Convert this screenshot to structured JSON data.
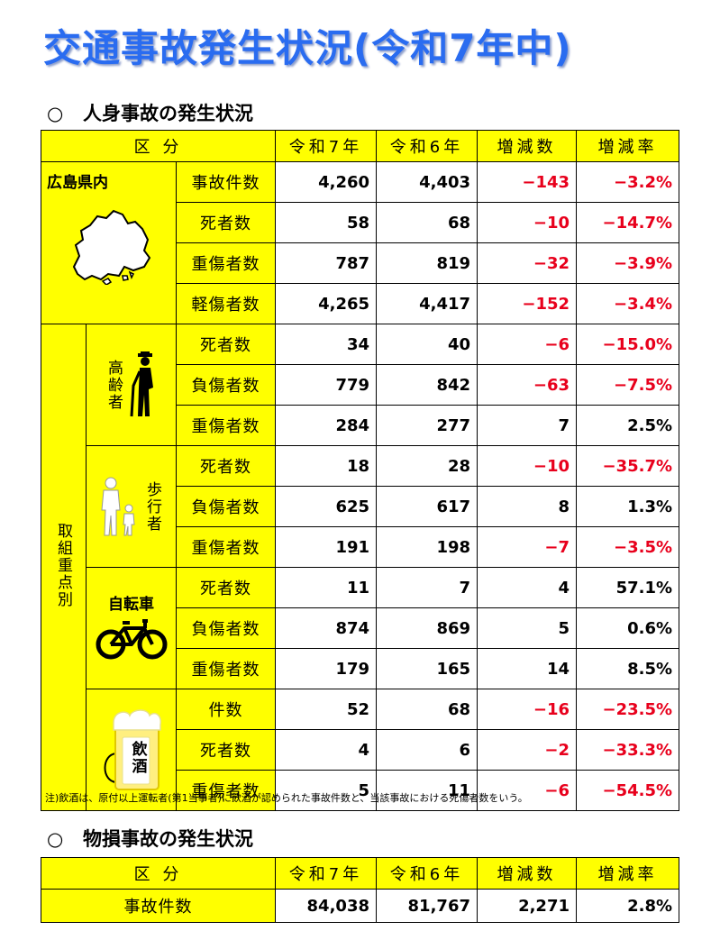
{
  "title": "交通事故発生状況(令和7年中)",
  "section1": {
    "mark": "○",
    "title": "人身事故の発生状況"
  },
  "section2": {
    "mark": "○",
    "title": "物損事故の発生状況"
  },
  "header": [
    "区 分",
    "令和7年",
    "令和6年",
    "増減数",
    "増減率"
  ],
  "icons": [
    "hiroshima-map-icon",
    "elderly-person-icon",
    "pedestrian-icon",
    "bicycle-icon",
    "beer-mug-icon"
  ],
  "colors": {
    "title": "#2a6cf0",
    "highlight": "#ffff00",
    "negative": "#e8001c"
  },
  "injury": {
    "pref": {
      "label": "広島県内",
      "rows": [
        {
          "label": "事故件数",
          "r7": "4,260",
          "r6": "4,403",
          "diff": "−143",
          "rate": "−3.2%"
        },
        {
          "label": "死者数",
          "r7": "58",
          "r6": "68",
          "diff": "−10",
          "rate": "−14.7%"
        },
        {
          "label": "重傷者数",
          "r7": "787",
          "r6": "819",
          "diff": "−32",
          "rate": "−3.9%"
        },
        {
          "label": "軽傷者数",
          "r7": "4,265",
          "r6": "4,417",
          "diff": "−152",
          "rate": "−3.4%"
        }
      ]
    },
    "focus_label": "取組重点別",
    "groups": [
      {
        "label": "高齢者",
        "rows": [
          {
            "label": "死者数",
            "r7": "34",
            "r6": "40",
            "diff": "−6",
            "rate": "−15.0%"
          },
          {
            "label": "負傷者数",
            "r7": "779",
            "r6": "842",
            "diff": "−63",
            "rate": "−7.5%"
          },
          {
            "label": "重傷者数",
            "r7": "284",
            "r6": "277",
            "diff": "7",
            "rate": "2.5%"
          }
        ]
      },
      {
        "label": "歩行者",
        "rows": [
          {
            "label": "死者数",
            "r7": "18",
            "r6": "28",
            "diff": "−10",
            "rate": "−35.7%"
          },
          {
            "label": "負傷者数",
            "r7": "625",
            "r6": "617",
            "diff": "8",
            "rate": "1.3%"
          },
          {
            "label": "重傷者数",
            "r7": "191",
            "r6": "198",
            "diff": "−7",
            "rate": "−3.5%"
          }
        ]
      },
      {
        "label": "自転車",
        "rows": [
          {
            "label": "死者数",
            "r7": "11",
            "r6": "7",
            "diff": "4",
            "rate": "57.1%"
          },
          {
            "label": "負傷者数",
            "r7": "874",
            "r6": "869",
            "diff": "5",
            "rate": "0.6%"
          },
          {
            "label": "重傷者数",
            "r7": "179",
            "r6": "165",
            "diff": "14",
            "rate": "8.5%"
          }
        ]
      },
      {
        "label": "飲酒",
        "rows": [
          {
            "label": "件数",
            "r7": "52",
            "r6": "68",
            "diff": "−16",
            "rate": "−23.5%"
          },
          {
            "label": "死者数",
            "r7": "4",
            "r6": "6",
            "diff": "−2",
            "rate": "−33.3%"
          },
          {
            "label": "重傷者数",
            "r7": "5",
            "r6": "11",
            "diff": "−6",
            "rate": "−54.5%"
          }
        ]
      }
    ]
  },
  "note": "注)飲酒は、原付以上運転者(第1当事者)に飲酒が認められた事故件数と、当該事故における死傷者数をいう。",
  "property": {
    "rows": [
      {
        "label": "事故件数",
        "r7": "84,038",
        "r6": "81,767",
        "diff": "2,271",
        "rate": "2.8%"
      }
    ]
  }
}
